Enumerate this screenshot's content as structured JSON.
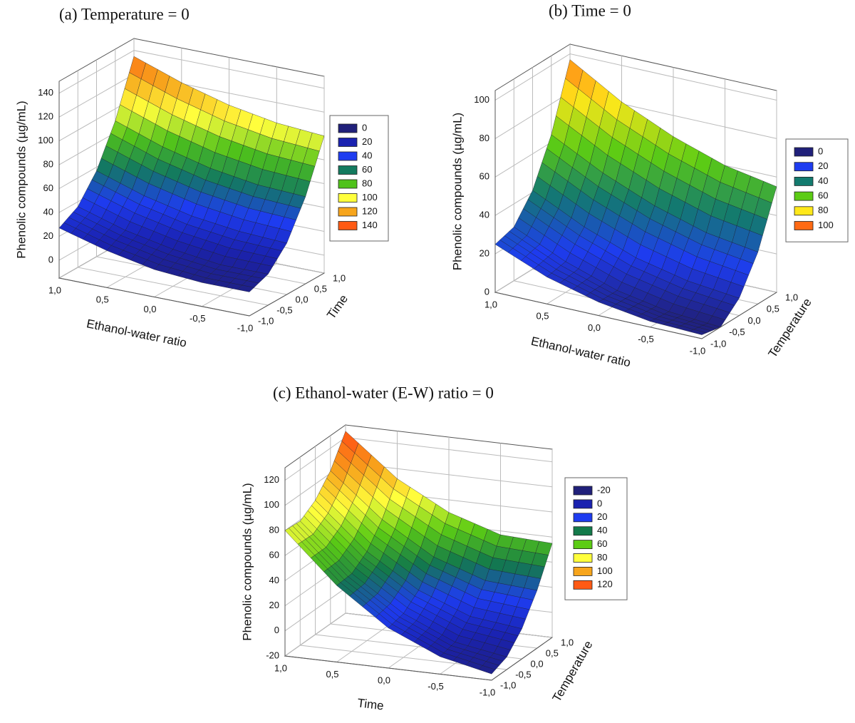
{
  "chart_data": [
    {
      "type": "surface",
      "title": "(a)  Temperature = 0",
      "xlabel": "Ethanol-water ratio",
      "ylabel": "Time",
      "zlabel": "Phenolic compounds (µg/mL)",
      "x": [
        -1,
        -0.5,
        0,
        0.5,
        1
      ],
      "y": [
        -1,
        -0.5,
        0,
        0.5,
        1
      ],
      "z": [
        [
          5,
          5,
          8,
          16,
          27
        ],
        [
          11,
          11,
          16,
          24,
          36
        ],
        [
          28,
          30,
          35,
          44,
          57
        ],
        [
          58,
          60,
          66,
          76,
          90
        ],
        [
          100,
          103,
          110,
          121,
          135
        ]
      ],
      "xlim": [
        -1,
        1
      ],
      "ylim": [
        -1,
        1
      ],
      "zlim": [
        -15,
        150
      ],
      "xticks": [
        {
          "value": 1,
          "label": "1,0"
        },
        {
          "value": 0.5,
          "label": "0,5"
        },
        {
          "value": 0,
          "label": "0,0"
        },
        {
          "value": -0.5,
          "label": "-0,5"
        },
        {
          "value": -1,
          "label": "-1,0"
        }
      ],
      "yticks": [
        {
          "value": 1,
          "label": "1,0"
        },
        {
          "value": 0.5,
          "label": "0,5"
        },
        {
          "value": 0,
          "label": "0,0"
        },
        {
          "value": -0.5,
          "label": "-0,5"
        },
        {
          "value": -1,
          "label": "-1,0"
        }
      ],
      "zticks": [
        140,
        120,
        100,
        80,
        60,
        40,
        20,
        0
      ],
      "legend": {
        "values": [
          0,
          20,
          40,
          60,
          80,
          100,
          120,
          140
        ],
        "colors": [
          "#20207a",
          "#1a22b0",
          "#1e3cf0",
          "#137a5f",
          "#4fc21a",
          "#ffff3c",
          "#f7a51c",
          "#ff5a14"
        ]
      }
    },
    {
      "type": "surface",
      "title": "(b)  Time = 0",
      "xlabel": "Ethanol-water ratio",
      "ylabel": "Temperature",
      "zlabel": "Phenolic compounds (µg/mL)",
      "x": [
        -1,
        -0.5,
        0,
        0.5,
        1
      ],
      "y": [
        -1,
        -0.5,
        0,
        0.5,
        1
      ],
      "z": [
        [
          2,
          3,
          7,
          14,
          25
        ],
        [
          0,
          2,
          7,
          16,
          28
        ],
        [
          9,
          12,
          18,
          28,
          41
        ],
        [
          27,
          31,
          39,
          50,
          64
        ],
        [
          55,
          60,
          69,
          81,
          97
        ]
      ],
      "xlim": [
        -1,
        1
      ],
      "ylim": [
        -1,
        1
      ],
      "zlim": [
        0,
        105
      ],
      "xticks": [
        {
          "value": 1,
          "label": "1,0"
        },
        {
          "value": 0.5,
          "label": "0,5"
        },
        {
          "value": 0,
          "label": "0,0"
        },
        {
          "value": -0.5,
          "label": "-0,5"
        },
        {
          "value": -1,
          "label": "-1,0"
        }
      ],
      "yticks": [
        {
          "value": 1,
          "label": "1,0"
        },
        {
          "value": 0.5,
          "label": "0,5"
        },
        {
          "value": 0,
          "label": "0,0"
        },
        {
          "value": -0.5,
          "label": "-0,5"
        },
        {
          "value": -1,
          "label": "-1,0"
        }
      ],
      "zticks": [
        100,
        80,
        60,
        40,
        20,
        0
      ],
      "legend": {
        "values": [
          0,
          20,
          40,
          60,
          80,
          100
        ],
        "colors": [
          "#20207a",
          "#1e3cf0",
          "#137a6e",
          "#5ccc14",
          "#ffe81a",
          "#ff6a14"
        ]
      }
    },
    {
      "type": "surface",
      "title": "(c)  Ethanol-water (E-W) ratio = 0",
      "xlabel": "Time",
      "ylabel": "Temperature",
      "zlabel": "Phenolic compounds (µg/mL)",
      "x": [
        -1,
        -0.5,
        0,
        0.5,
        1
      ],
      "y": [
        -1,
        -0.5,
        0,
        0.5,
        1
      ],
      "z": [
        [
          -15,
          -6,
          12,
          41,
          80
        ],
        [
          -10,
          -3,
          15,
          42,
          79
        ],
        [
          4,
          9,
          25,
          51,
          87
        ],
        [
          26,
          29,
          43,
          68,
          102
        ],
        [
          55,
          57,
          70,
          92,
          125
        ]
      ],
      "xlim": [
        -1,
        1
      ],
      "ylim": [
        -1,
        1
      ],
      "zlim": [
        -20,
        130
      ],
      "xticks": [
        {
          "value": 1,
          "label": "1,0"
        },
        {
          "value": 0.5,
          "label": "0,5"
        },
        {
          "value": 0,
          "label": "0,0"
        },
        {
          "value": -0.5,
          "label": "-0,5"
        },
        {
          "value": -1,
          "label": "-1,0"
        }
      ],
      "yticks": [
        {
          "value": 1,
          "label": "1,0"
        },
        {
          "value": 0.5,
          "label": "0,5"
        },
        {
          "value": 0,
          "label": "0,0"
        },
        {
          "value": -0.5,
          "label": "-0,5"
        },
        {
          "value": -1,
          "label": "-1,0"
        }
      ],
      "zticks": [
        120,
        100,
        80,
        60,
        40,
        20,
        0,
        -20
      ],
      "legend": {
        "values": [
          -20,
          0,
          20,
          40,
          60,
          80,
          100,
          120
        ],
        "colors": [
          "#20207a",
          "#1a22b0",
          "#1e3cf0",
          "#137a4a",
          "#5ccc14",
          "#ffff3c",
          "#f7a51c",
          "#ff5a14"
        ]
      }
    }
  ]
}
